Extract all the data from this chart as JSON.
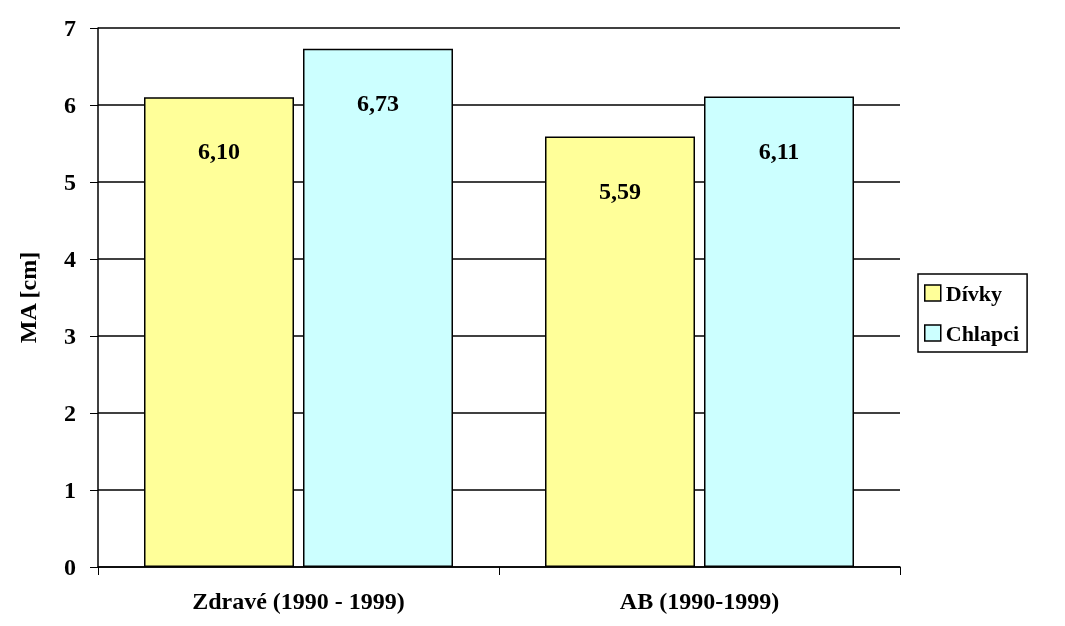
{
  "chart_data": {
    "type": "bar",
    "ylabel": "MA [cm]",
    "categories": [
      "Zdravé (1990 - 1999)",
      "AB (1990-1999)"
    ],
    "series": [
      {
        "name": "Dívky",
        "color": "#ffff99",
        "values": [
          6.1,
          5.59
        ],
        "value_labels": [
          "6,10",
          "5,59"
        ]
      },
      {
        "name": "Chlapci",
        "color": "#ccffff",
        "values": [
          6.73,
          6.11
        ],
        "value_labels": [
          "6,73",
          "6,11"
        ]
      }
    ],
    "ylim": [
      0,
      7
    ],
    "yticks": [
      0,
      1,
      2,
      3,
      4,
      5,
      6,
      7
    ],
    "grid": "y",
    "legend": "right"
  }
}
